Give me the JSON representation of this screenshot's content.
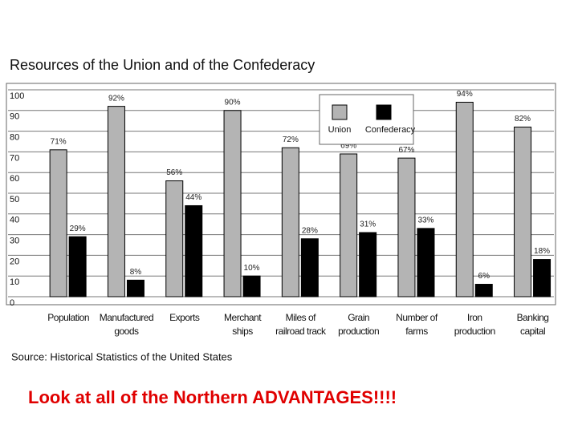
{
  "chart_data": {
    "type": "bar",
    "title": "Resources of the Union and of the Confederacy",
    "source": "Source: Historical Statistics of the United States",
    "annotation": "Look at all of the Northern ADVANTAGES!!!!",
    "categories": [
      "Population",
      "Manufactured goods",
      "Exports",
      "Merchant ships",
      "Miles of railroad track",
      "Grain production",
      "Number of farms",
      "Iron production",
      "Banking capital"
    ],
    "series": [
      {
        "name": "Union",
        "color": "#b4b4b4",
        "values": [
          71,
          92,
          56,
          90,
          72,
          69,
          67,
          94,
          82
        ],
        "value_labels": [
          "71%",
          "92%",
          "56%",
          "90%",
          "72%",
          "69%",
          "67%",
          "94%",
          "82%"
        ]
      },
      {
        "name": "Confederacy",
        "color": "#000000",
        "values": [
          29,
          8,
          44,
          10,
          28,
          31,
          33,
          6,
          18
        ],
        "value_labels": [
          "29%",
          "8%",
          "44%",
          "10%",
          "28%",
          "31%",
          "33%",
          "6%",
          "18%"
        ]
      }
    ],
    "ylim": [
      0,
      100
    ],
    "yticks": [
      0,
      10,
      20,
      30,
      40,
      50,
      60,
      70,
      80,
      90,
      100
    ],
    "grid": true
  }
}
